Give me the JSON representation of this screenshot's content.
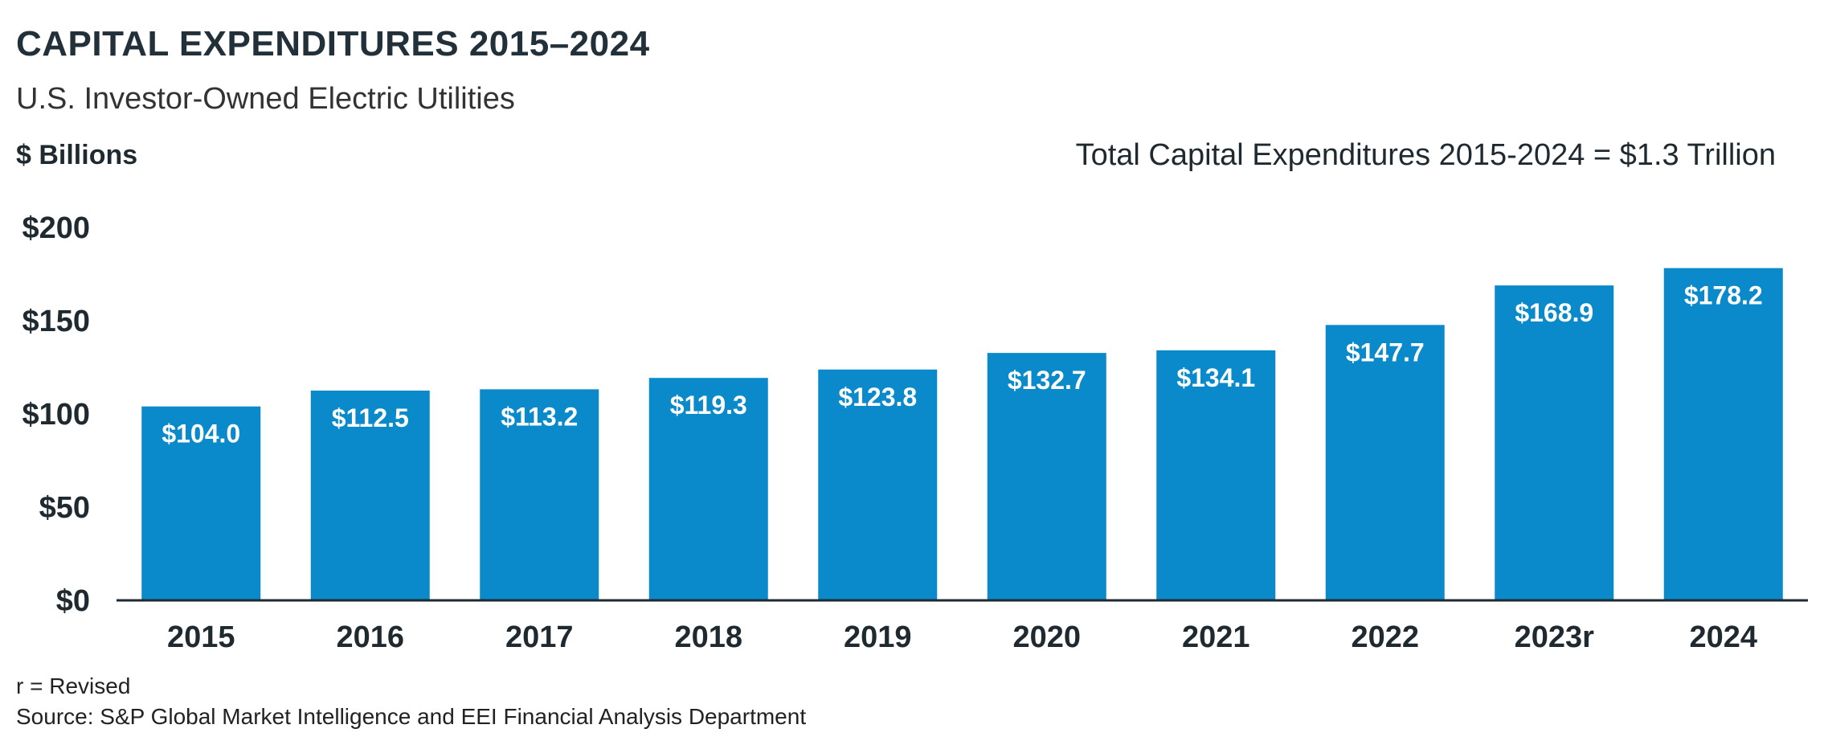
{
  "header": {
    "title": "CAPITAL EXPENDITURES 2015–2024",
    "subtitle": "U.S. Investor-Owned Electric Utilities",
    "unit_label": "$ Billions",
    "total_note": "Total Capital Expenditures 2015-2024 = $1.3 Trillion"
  },
  "footer": {
    "footnote": "r = Revised",
    "source": "Source: S&P Global Market Intelligence and EEI Financial Analysis Department"
  },
  "colors": {
    "bar": "#0a8acb",
    "axis": "#1f2a30"
  },
  "chart_data": {
    "type": "bar",
    "categories": [
      "2015",
      "2016",
      "2017",
      "2018",
      "2019",
      "2020",
      "2021",
      "2022",
      "2023r",
      "2024"
    ],
    "values": [
      104.0,
      112.5,
      113.2,
      119.3,
      123.8,
      132.7,
      134.1,
      147.7,
      168.9,
      178.2
    ],
    "data_labels": [
      "$104.0",
      "$112.5",
      "$113.2",
      "$119.3",
      "$123.8",
      "$132.7",
      "$134.1",
      "$147.7",
      "$168.9",
      "$178.2"
    ],
    "ylim": [
      0,
      200
    ],
    "yticks": [
      0,
      50,
      100,
      150,
      200
    ],
    "ytick_labels": [
      "$0",
      "$50",
      "$100",
      "$150",
      "$200"
    ],
    "grid": false,
    "legend": "none"
  }
}
